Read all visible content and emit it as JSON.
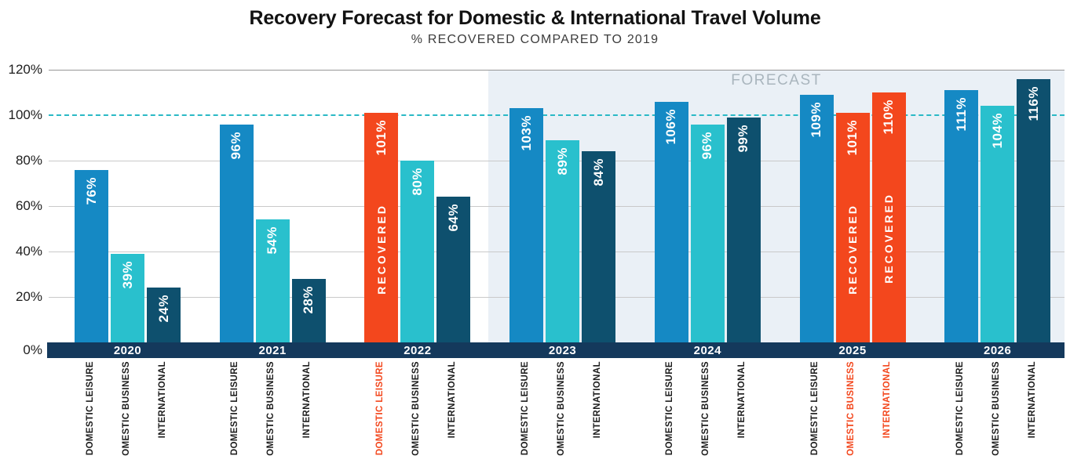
{
  "title": "Recovery Forecast for Domestic & International Travel Volume",
  "subtitle": "% RECOVERED COMPARED TO 2019",
  "forecast": {
    "label": "FORECAST",
    "starts_at_category": "2023"
  },
  "recovered_text": "RECOVERED",
  "value_suffix": "%",
  "colors": {
    "domestic_leisure": "#1589c4",
    "domestic_business": "#29c0cd",
    "international": "#0e506e",
    "recovered": "#f3471d",
    "axis_band": "#14395c",
    "forecast_bg": "#eaf0f6",
    "forecast_text": "#a9b5bd",
    "gridline": "#c9c9c9",
    "top_gridline": "#969696",
    "hundred_line": "#2ab9c6",
    "category_text": "#1c1c1c",
    "title_text": "#121212"
  },
  "y_axis": {
    "tick_values": [
      120,
      100,
      80,
      60,
      40,
      20,
      0
    ],
    "tick_labels": [
      "120%",
      "100%",
      "80%",
      "60%",
      "40%",
      "20%",
      "0%"
    ]
  },
  "chart_data": {
    "type": "bar",
    "title": "Recovery Forecast for Domestic & International Travel Volume",
    "subtitle": "% RECOVERED COMPARED TO 2019",
    "xlabel": "",
    "ylabel": "% recovered compared to 2019",
    "ylim": [
      0,
      120
    ],
    "grid": true,
    "reference_line": {
      "value": 100,
      "style": "dashed"
    },
    "forecast_categories": [
      "2023",
      "2024",
      "2025",
      "2026"
    ],
    "categories": [
      "2020",
      "2021",
      "2022",
      "2023",
      "2024",
      "2025",
      "2026"
    ],
    "series": [
      {
        "name": "DOMESTIC LEISURE",
        "color_key": "domestic_leisure",
        "values": [
          76,
          96,
          101,
          103,
          106,
          109,
          111
        ],
        "recovered": [
          false,
          false,
          true,
          false,
          false,
          false,
          false
        ]
      },
      {
        "name": "DOMESTIC BUSINESS",
        "color_key": "domestic_business",
        "values": [
          39,
          54,
          80,
          89,
          96,
          101,
          104
        ],
        "recovered": [
          false,
          false,
          false,
          false,
          false,
          true,
          false
        ]
      },
      {
        "name": "INTERNATIONAL",
        "color_key": "international",
        "values": [
          24,
          28,
          64,
          84,
          99,
          110,
          116
        ],
        "recovered": [
          false,
          false,
          false,
          false,
          false,
          true,
          false
        ]
      }
    ]
  }
}
